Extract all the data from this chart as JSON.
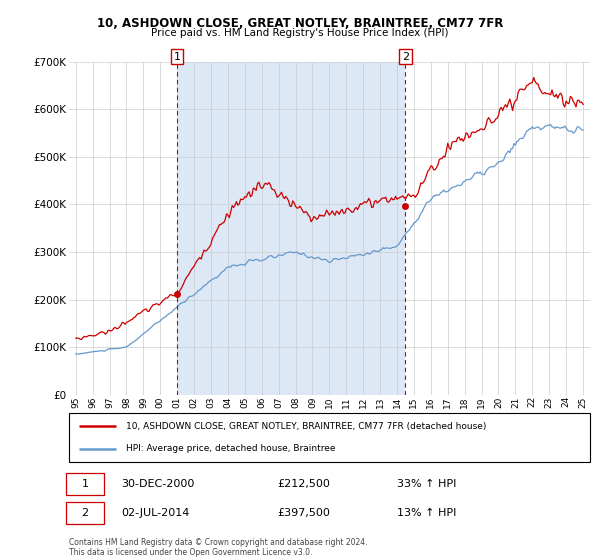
{
  "title1": "10, ASHDOWN CLOSE, GREAT NOTLEY, BRAINTREE, CM77 7FR",
  "title2": "Price paid vs. HM Land Registry's House Price Index (HPI)",
  "legend_line1": "10, ASHDOWN CLOSE, GREAT NOTLEY, BRAINTREE, CM77 7FR (detached house)",
  "legend_line2": "HPI: Average price, detached house, Braintree",
  "table_row1": [
    "1",
    "30-DEC-2000",
    "£212,500",
    "33% ↑ HPI"
  ],
  "table_row2": [
    "2",
    "02-JUL-2014",
    "£397,500",
    "13% ↑ HPI"
  ],
  "footnote1": "Contains HM Land Registry data © Crown copyright and database right 2024.",
  "footnote2": "This data is licensed under the Open Government Licence v3.0.",
  "marker1_year": 2001.0,
  "marker1_price": 212500,
  "marker2_year": 2014.5,
  "marker2_price": 397500,
  "vline1_year": 2001.0,
  "vline2_year": 2014.5,
  "ylim_max": 700000,
  "xlim_start": 1994.6,
  "xlim_end": 2025.4,
  "red_color": "#cc0000",
  "blue_color": "#6699cc",
  "shade_color": "#dce8f5",
  "grid_color": "#cccccc",
  "bg_color": "#ffffff",
  "label_box_color": "#cc0000"
}
